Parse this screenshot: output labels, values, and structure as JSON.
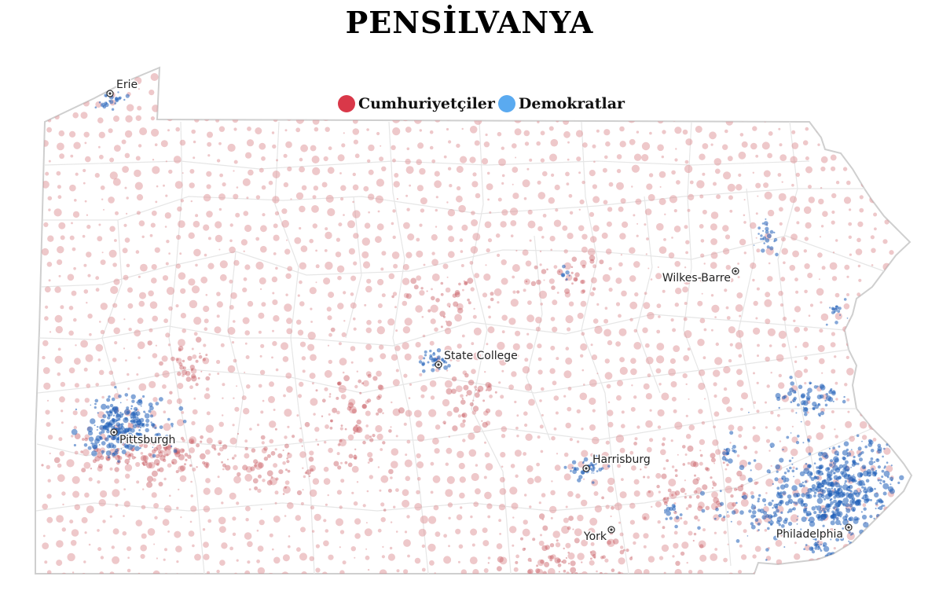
{
  "title": "PENSİLVANYA",
  "legend": [
    {
      "label": "Cumhuriyetçiler",
      "color": "#d93849"
    },
    {
      "label": "Demokratlar",
      "color": "#5aaaf0"
    }
  ],
  "colors": {
    "republican_dot": "#d9868a",
    "democrat_dot": "#1f5fb8",
    "border": "#cfcfcf",
    "county_line": "#e6e6e6"
  },
  "cities": [
    {
      "name": "Erie",
      "key": "erie"
    },
    {
      "name": "State College",
      "key": "state-college"
    },
    {
      "name": "Wilkes-Barre",
      "key": "wilkes-barre"
    },
    {
      "name": "Pittsburgh",
      "key": "pittsburgh"
    },
    {
      "name": "Harrisburg",
      "key": "harrisburg"
    },
    {
      "name": "York",
      "key": "york"
    },
    {
      "name": "Philadelphia",
      "key": "philadelphia"
    }
  ]
}
